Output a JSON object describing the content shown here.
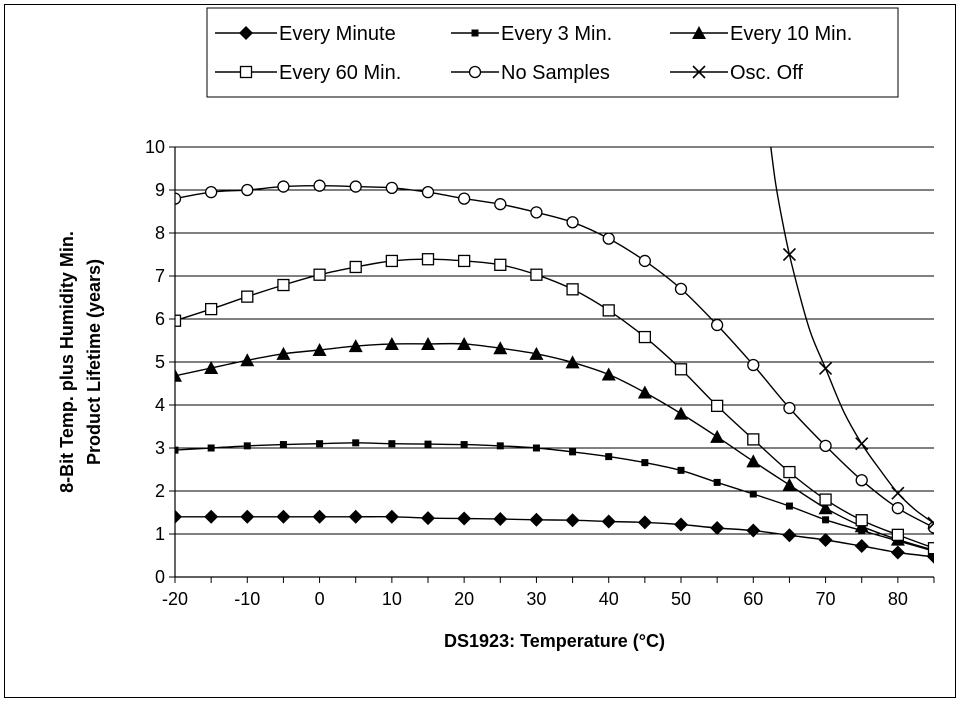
{
  "chart_data": {
    "type": "line",
    "xlabel": "DS1923: Temperature (°C)",
    "ylabel_line1": "8-Bit Temp. plus Humidity Min.",
    "ylabel_line2": "Product Lifetime (years)",
    "xlim": [
      -20,
      85
    ],
    "ylim": [
      0,
      10
    ],
    "x_ticks": [
      -20,
      -10,
      0,
      10,
      20,
      30,
      40,
      50,
      60,
      70,
      80
    ],
    "y_ticks": [
      0,
      1,
      2,
      3,
      4,
      5,
      6,
      7,
      8,
      9,
      10
    ],
    "grid": "horizontal",
    "legend_position": "top",
    "x": [
      -20,
      -15,
      -10,
      -5,
      0,
      5,
      10,
      15,
      20,
      25,
      30,
      35,
      40,
      45,
      50,
      55,
      60,
      65,
      70,
      75,
      80,
      85
    ],
    "series": [
      {
        "name": "Every Minute",
        "marker": "diamond",
        "values": [
          1.4,
          1.4,
          1.4,
          1.4,
          1.4,
          1.4,
          1.4,
          1.37,
          1.36,
          1.35,
          1.33,
          1.32,
          1.29,
          1.27,
          1.22,
          1.14,
          1.08,
          0.97,
          0.86,
          0.72,
          0.57,
          0.47
        ]
      },
      {
        "name": "Every 3 Min.",
        "marker": "square-filled",
        "values": [
          2.95,
          3.0,
          3.05,
          3.08,
          3.1,
          3.12,
          3.1,
          3.09,
          3.08,
          3.05,
          3.0,
          2.91,
          2.8,
          2.66,
          2.48,
          2.2,
          1.93,
          1.65,
          1.33,
          1.08,
          0.84,
          0.6
        ]
      },
      {
        "name": "Every 10 Min.",
        "marker": "triangle",
        "values": [
          4.68,
          4.86,
          5.04,
          5.19,
          5.28,
          5.37,
          5.42,
          5.42,
          5.42,
          5.32,
          5.19,
          4.99,
          4.71,
          4.29,
          3.8,
          3.26,
          2.69,
          2.14,
          1.6,
          1.18,
          0.87,
          0.62
        ]
      },
      {
        "name": "Every 60 Min.",
        "marker": "square-open",
        "values": [
          5.96,
          6.23,
          6.52,
          6.79,
          7.03,
          7.21,
          7.35,
          7.39,
          7.35,
          7.26,
          7.03,
          6.69,
          6.2,
          5.58,
          4.83,
          3.98,
          3.2,
          2.44,
          1.8,
          1.32,
          0.98,
          0.67
        ]
      },
      {
        "name": "No Samples",
        "marker": "circle-open",
        "values": [
          8.8,
          8.95,
          9.0,
          9.08,
          9.1,
          9.08,
          9.05,
          8.95,
          8.8,
          8.67,
          8.48,
          8.25,
          7.87,
          7.35,
          6.7,
          5.86,
          4.93,
          3.93,
          3.05,
          2.25,
          1.6,
          1.15
        ]
      },
      {
        "name": "Osc. Off",
        "marker": "x",
        "line_x": [
          62,
          63,
          64,
          65,
          66.5,
          68,
          70,
          72.5,
          75,
          77.5,
          80,
          82.5,
          85
        ],
        "line_values": [
          10.6,
          9.25,
          8.3,
          7.5,
          6.5,
          5.65,
          4.85,
          3.85,
          3.1,
          2.5,
          1.95,
          1.55,
          1.25
        ],
        "marker_x": [
          65,
          70,
          75,
          80,
          85
        ],
        "marker_values": [
          7.5,
          4.85,
          3.1,
          1.95,
          1.25
        ]
      }
    ]
  }
}
